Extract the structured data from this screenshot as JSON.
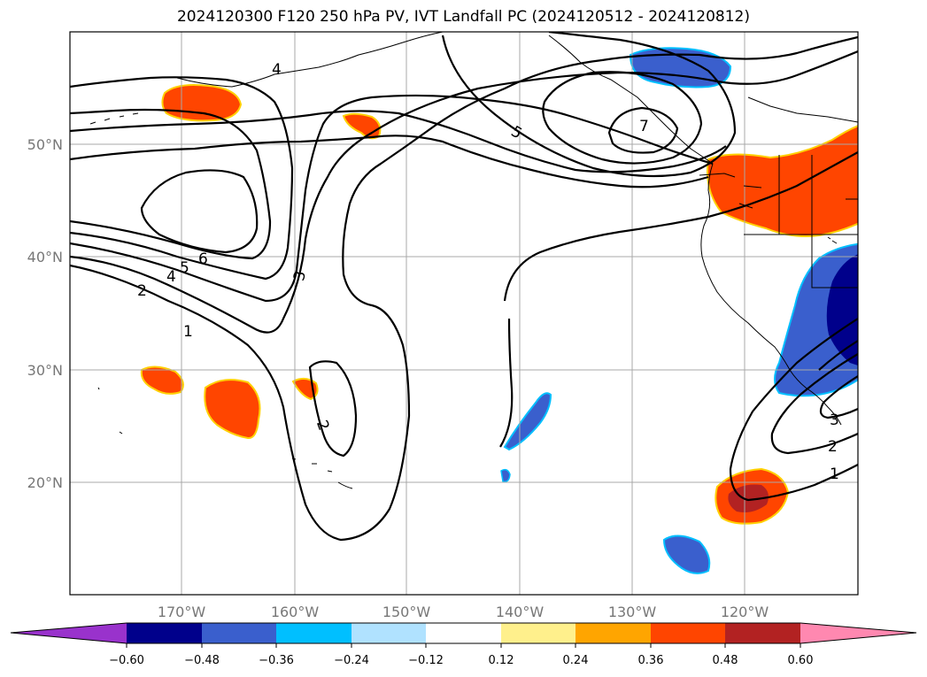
{
  "title": "2024120300 F120 250 hPa PV, IVT Landfall PC (2024120512 - 2024120812)",
  "lat_labels": [
    "50°N",
    "40°N",
    "30°N",
    "20°N"
  ],
  "lon_labels": [
    "170°W",
    "160°W",
    "150°W",
    "140°W",
    "130°W",
    "120°W"
  ],
  "colorbar": {
    "tick_labels": [
      "−0.60",
      "−0.48",
      "−0.36",
      "−0.24",
      "−0.12",
      "0.12",
      "0.24",
      "0.36",
      "0.48",
      "0.60"
    ],
    "colors": [
      "#9932cc",
      "#00008b",
      "#3a5fcd",
      "#00bfff",
      "#b0e2ff",
      "#ffffff",
      "#fff08c",
      "#ffa500",
      "#ff4500",
      "#b22222",
      "#ff88b0"
    ]
  },
  "contour_labels": [
    "4",
    "5",
    "7",
    "6",
    "5",
    "4",
    "2",
    "1",
    "3",
    "2",
    "3",
    "2",
    "1"
  ]
}
